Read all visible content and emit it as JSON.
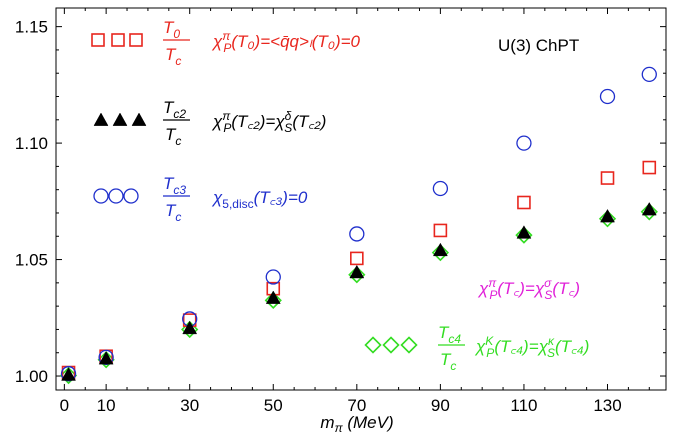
{
  "chart_data": {
    "type": "scatter",
    "panel_label": "U(3) ChPT",
    "xlabel": "m_π (MeV)",
    "ylabel": "",
    "xlim": [
      -2,
      144
    ],
    "ylim": [
      0.994,
      1.158
    ],
    "x_ticks": [
      0,
      10,
      30,
      50,
      70,
      90,
      110,
      130
    ],
    "y_ticks": [
      1.0,
      1.05,
      1.1,
      1.15
    ],
    "y_tick_labels": [
      "1.00",
      "1.05",
      "1.10",
      "1.15"
    ],
    "grid": false,
    "x": [
      1,
      10,
      30,
      50,
      70,
      90,
      110,
      130,
      140
    ],
    "series": [
      {
        "marker": "square-open",
        "color": "#e8261e",
        "values": [
          1.0015,
          1.0085,
          1.024,
          1.0375,
          1.0505,
          1.0625,
          1.0745,
          1.085,
          1.0895
        ],
        "legend": {
          "ratio_num": "T",
          "ratio_num_sub": "0",
          "ratio_den": "T",
          "ratio_den_sub": "c",
          "cond_main": "χ",
          "cond_sub": "P",
          "cond_sup": "π",
          "cond_rest": "(T₀)=<q̄q>ₗ(T₀)=0"
        }
      },
      {
        "marker": "triangle-filled",
        "color": "#000000",
        "values": [
          1.0005,
          1.0075,
          1.0205,
          1.0335,
          1.0445,
          1.054,
          1.0615,
          1.0685,
          1.0715
        ],
        "legend": {
          "ratio_num": "T",
          "ratio_num_sub": "c2",
          "ratio_den": "T",
          "ratio_den_sub": "c",
          "cond_main": "χ",
          "cond_sub": "P",
          "cond_sup": "π",
          "cond_rest": "(T꜀₂)=χ",
          "cond2_sub": "S",
          "cond2_sup": "δ",
          "cond2_rest": "(T꜀₂)"
        }
      },
      {
        "marker": "circle-open",
        "color": "#1f2fcc",
        "values": [
          1.001,
          1.008,
          1.0245,
          1.0425,
          1.061,
          1.0805,
          1.1,
          1.12,
          1.1295
        ],
        "legend": {
          "ratio_num": "T",
          "ratio_num_sub": "c3",
          "ratio_den": "T",
          "ratio_den_sub": "c",
          "cond_main": "χ",
          "cond_sub": "5,disc",
          "cond_rest": "(T꜀₃)=0"
        }
      },
      {
        "marker": "diamond-open",
        "color": "#33dd22",
        "values": [
          1.0002,
          1.007,
          1.02,
          1.0325,
          1.0435,
          1.053,
          1.0605,
          1.0675,
          1.0705
        ],
        "legend": {
          "ratio_num": "T",
          "ratio_num_sub": "c4",
          "ratio_den": "T",
          "ratio_den_sub": "c",
          "cond_main": "χ",
          "cond_sub": "P",
          "cond_sup": "K",
          "cond_rest": "(T꜀₄)=χ",
          "cond2_sub": "S",
          "cond2_sup": "κ",
          "cond2_rest": "(T꜀₄)"
        }
      }
    ],
    "annotation_magenta": {
      "color": "#e020d8",
      "main": "χ",
      "sub": "P",
      "sup": "π",
      "rest": "(T꜀)=χ",
      "sub2": "S",
      "sup2": "σ",
      "rest2": "(T꜀)"
    }
  }
}
